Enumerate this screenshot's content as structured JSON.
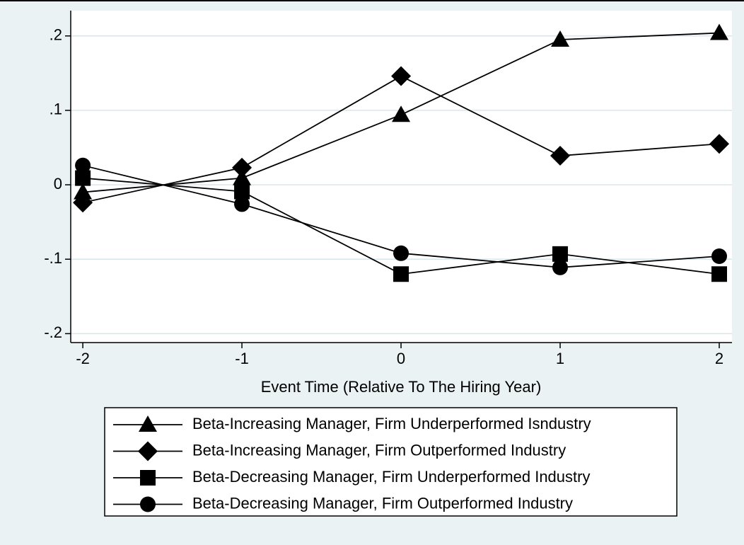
{
  "chart_data": {
    "type": "line",
    "x_label": "Event Time (Relative To The Hiring Year)",
    "x": [
      -2,
      -1,
      0,
      1,
      2
    ],
    "xlim": [
      -2.076,
      2.08
    ],
    "xticks": [
      -2,
      -1,
      0,
      1,
      2
    ],
    "ylim": [
      -0.212,
      0.234
    ],
    "yticks": [
      {
        "value": -0.2,
        "label": "-.2"
      },
      {
        "value": -0.1,
        "label": "-.1"
      },
      0,
      {
        "value": 0.1,
        "label": ".1"
      },
      {
        "value": 0.2,
        "label": ".2"
      }
    ],
    "grid": true,
    "legend": "bottom",
    "series": [
      {
        "name": "Beta-Increasing Manager, Firm Underperformed Isndustry",
        "color": "#000000",
        "marker": "triangle",
        "values": [
          -0.01,
          0.009,
          0.094,
          0.195,
          0.204
        ]
      },
      {
        "name": "Beta-Increasing Manager, Firm Outperformed Industry",
        "color": "#000000",
        "marker": "diamond",
        "values": [
          -0.024,
          0.023,
          0.146,
          0.039,
          0.055
        ]
      },
      {
        "name": "Beta-Decreasing Manager, Firm Underperformed Industry",
        "color": "#000000",
        "marker": "square",
        "values": [
          0.009,
          -0.009,
          -0.12,
          -0.093,
          -0.12
        ]
      },
      {
        "name": "Beta-Decreasing Manager, Firm Outperformed Industry",
        "color": "#000000",
        "marker": "circle",
        "values": [
          0.026,
          -0.026,
          -0.092,
          -0.111,
          -0.096
        ]
      }
    ]
  }
}
